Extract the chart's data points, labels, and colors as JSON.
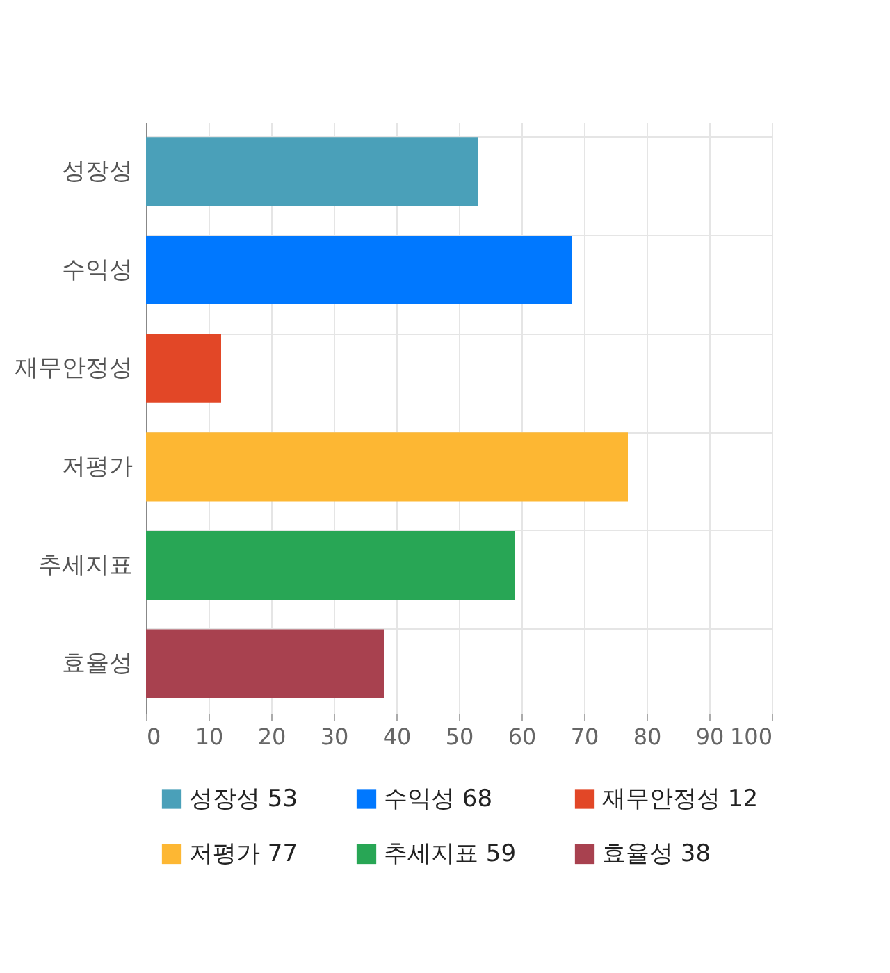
{
  "chart_data": {
    "type": "bar",
    "orientation": "horizontal",
    "stacked": true,
    "categories": [
      "성장성",
      "수익성",
      "재무안정성",
      "저평가",
      "추세지표",
      "효율성"
    ],
    "series": [
      {
        "name": "성장성 53",
        "color": "#4aa0b9",
        "values": [
          53,
          null,
          null,
          null,
          null,
          null
        ]
      },
      {
        "name": "수익성 68",
        "color": "#0078ff",
        "values": [
          null,
          68,
          null,
          null,
          null,
          null
        ]
      },
      {
        "name": "재무안정성 12",
        "color": "#e24727",
        "values": [
          null,
          null,
          12,
          null,
          null,
          null
        ]
      },
      {
        "name": "저평가 77",
        "color": "#fdb733",
        "values": [
          null,
          null,
          null,
          77,
          null,
          null
        ]
      },
      {
        "name": "추세지표 59",
        "color": "#28a655",
        "values": [
          null,
          null,
          null,
          null,
          59,
          null
        ]
      },
      {
        "name": "효율성 38",
        "color": "#a8414f",
        "values": [
          null,
          null,
          null,
          null,
          null,
          38
        ]
      }
    ],
    "xlim": [
      0,
      100
    ],
    "xticks": [
      0,
      10,
      20,
      30,
      40,
      50,
      60,
      70,
      80,
      90,
      100
    ],
    "grid": true,
    "legend": "bottom"
  }
}
